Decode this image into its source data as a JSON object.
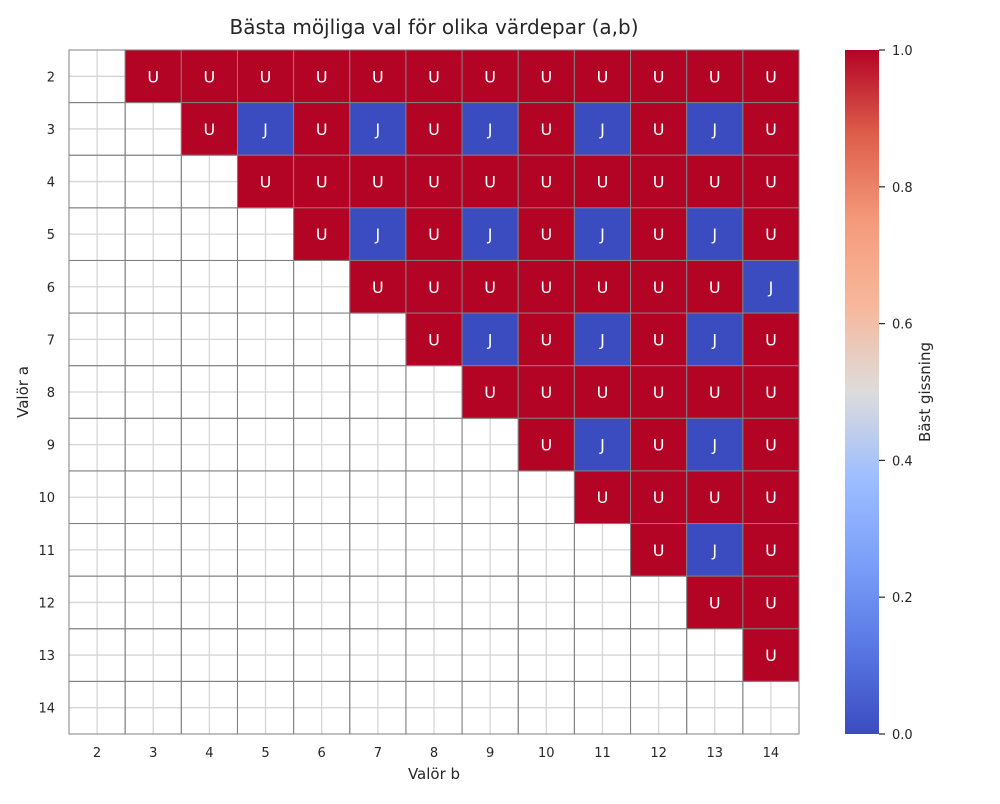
{
  "chart_data": {
    "type": "heatmap",
    "title": "Bästa möjliga val för olika värdepar (a,b)",
    "xlabel": "Valör b",
    "ylabel": "Valör a",
    "x_categories": [
      2,
      3,
      4,
      5,
      6,
      7,
      8,
      9,
      10,
      11,
      12,
      13,
      14
    ],
    "y_categories": [
      2,
      3,
      4,
      5,
      6,
      7,
      8,
      9,
      10,
      11,
      12,
      13,
      14
    ],
    "annotation_map": {
      "1": "U",
      "0": "J"
    },
    "values": [
      [
        null,
        1,
        1,
        1,
        1,
        1,
        1,
        1,
        1,
        1,
        1,
        1,
        1
      ],
      [
        null,
        null,
        1,
        0,
        1,
        0,
        1,
        0,
        1,
        0,
        1,
        0,
        1
      ],
      [
        null,
        null,
        null,
        1,
        1,
        1,
        1,
        1,
        1,
        1,
        1,
        1,
        1
      ],
      [
        null,
        null,
        null,
        null,
        1,
        0,
        1,
        0,
        1,
        0,
        1,
        0,
        1
      ],
      [
        null,
        null,
        null,
        null,
        null,
        1,
        1,
        1,
        1,
        1,
        1,
        1,
        0
      ],
      [
        null,
        null,
        null,
        null,
        null,
        null,
        1,
        0,
        1,
        0,
        1,
        0,
        1
      ],
      [
        null,
        null,
        null,
        null,
        null,
        null,
        null,
        1,
        1,
        1,
        1,
        1,
        1
      ],
      [
        null,
        null,
        null,
        null,
        null,
        null,
        null,
        null,
        1,
        0,
        1,
        0,
        1
      ],
      [
        null,
        null,
        null,
        null,
        null,
        null,
        null,
        null,
        null,
        1,
        1,
        1,
        1
      ],
      [
        null,
        null,
        null,
        null,
        null,
        null,
        null,
        null,
        null,
        null,
        1,
        0,
        1
      ],
      [
        null,
        null,
        null,
        null,
        null,
        null,
        null,
        null,
        null,
        null,
        null,
        1,
        1
      ],
      [
        null,
        null,
        null,
        null,
        null,
        null,
        null,
        null,
        null,
        null,
        null,
        null,
        1
      ],
      [
        null,
        null,
        null,
        null,
        null,
        null,
        null,
        null,
        null,
        null,
        null,
        null,
        null
      ]
    ],
    "colorbar": {
      "label": "Bäst gissning",
      "range": [
        0,
        1
      ],
      "ticks": [
        "0.0",
        "0.2",
        "0.4",
        "0.6",
        "0.8",
        "1.0"
      ],
      "colormap": "coolwarm",
      "colors": {
        "low": "#3b4cc0",
        "mid": "#dddcdc",
        "high": "#b40426"
      }
    },
    "grid": true
  }
}
